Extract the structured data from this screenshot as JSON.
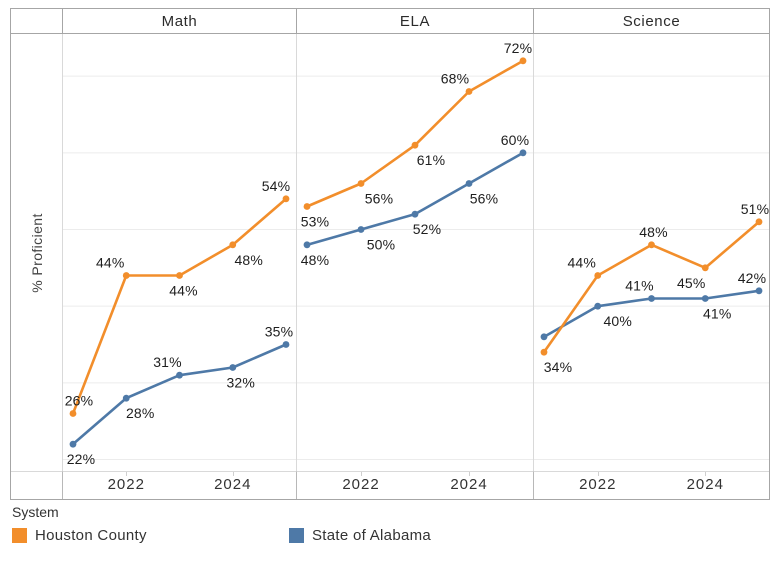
{
  "chart_data": {
    "type": "line",
    "x": [
      2021,
      2022,
      2023,
      2024,
      2025
    ],
    "x_ticks": [
      {
        "label": "2022",
        "year_index": 1
      },
      {
        "label": "2024",
        "year_index": 3
      }
    ],
    "ylabel": "% Proficient",
    "unit": "%",
    "ylim": [
      18.5,
      75.5
    ],
    "grid_values": [
      20,
      30,
      40,
      50,
      60,
      70
    ],
    "grid_on": true,
    "legend": {
      "title": "System",
      "position": "bottom",
      "entries": [
        {
          "label": "Houston County",
          "color": "#F28E2B"
        },
        {
          "label": "State of Alabama",
          "color": "#4E79A7"
        }
      ]
    },
    "facets": [
      {
        "title": "Math",
        "series": [
          {
            "name": "Houston County",
            "points": [
              {
                "v": 26,
                "label": "26%",
                "pos": "above",
                "dx": 6
              },
              {
                "v": 44,
                "label": "44%",
                "pos": "above",
                "dx": -16
              },
              {
                "v": 44,
                "label": "44%",
                "pos": "below",
                "dx": 4
              },
              {
                "v": 48,
                "label": "48%",
                "pos": "below",
                "dx": 16
              },
              {
                "v": 54,
                "label": "54%",
                "pos": "above",
                "dx": -10
              }
            ]
          },
          {
            "name": "State of Alabama",
            "points": [
              {
                "v": 22,
                "label": "22%",
                "pos": "below",
                "dx": 8
              },
              {
                "v": 28,
                "label": "28%",
                "pos": "below",
                "dx": 14
              },
              {
                "v": 31,
                "label": "31%",
                "pos": "above",
                "dx": -12
              },
              {
                "v": 32,
                "label": "32%",
                "pos": "below",
                "dx": 8
              },
              {
                "v": 35,
                "label": "35%",
                "pos": "above",
                "dx": -7
              }
            ]
          }
        ]
      },
      {
        "title": "ELA",
        "series": [
          {
            "name": "Houston County",
            "points": [
              {
                "v": 53,
                "label": "53%",
                "pos": "below",
                "dx": 8
              },
              {
                "v": 56,
                "label": "56%",
                "pos": "below",
                "dx": 18
              },
              {
                "v": 61,
                "label": "61%",
                "pos": "below",
                "dx": 16
              },
              {
                "v": 68,
                "label": "68%",
                "pos": "above",
                "dx": -14
              },
              {
                "v": 72,
                "label": "72%",
                "pos": "above",
                "dx": -5
              }
            ]
          },
          {
            "name": "State of Alabama",
            "points": [
              {
                "v": 48,
                "label": "48%",
                "pos": "below",
                "dx": 8
              },
              {
                "v": 50,
                "label": "50%",
                "pos": "below",
                "dx": 20
              },
              {
                "v": 52,
                "label": "52%",
                "pos": "below",
                "dx": 12
              },
              {
                "v": 56,
                "label": "56%",
                "pos": "below",
                "dx": 15
              },
              {
                "v": 60,
                "label": "60%",
                "pos": "above",
                "dx": -8
              }
            ]
          }
        ]
      },
      {
        "title": "Science",
        "series": [
          {
            "name": "Houston County",
            "points": [
              {
                "v": 34,
                "label": "34%",
                "pos": "below",
                "dx": 14
              },
              {
                "v": 44,
                "label": "44%",
                "pos": "above",
                "dx": -16
              },
              {
                "v": 48,
                "label": "48%",
                "pos": "above",
                "dx": 2
              },
              {
                "v": 45,
                "label": "45%",
                "pos": "below",
                "dx": -14
              },
              {
                "v": 51,
                "label": "51%",
                "pos": "above",
                "dx": -4
              }
            ]
          },
          {
            "name": "State of Alabama",
            "points": [
              {
                "v": 36,
                "label": null
              },
              {
                "v": 40,
                "label": "40%",
                "pos": "below",
                "dx": 20
              },
              {
                "v": 41,
                "label": "41%",
                "pos": "above",
                "dx": -12
              },
              {
                "v": 41,
                "label": "41%",
                "pos": "below",
                "dx": 12
              },
              {
                "v": 42,
                "label": "42%",
                "pos": "above",
                "dx": -7
              }
            ]
          }
        ]
      }
    ]
  }
}
